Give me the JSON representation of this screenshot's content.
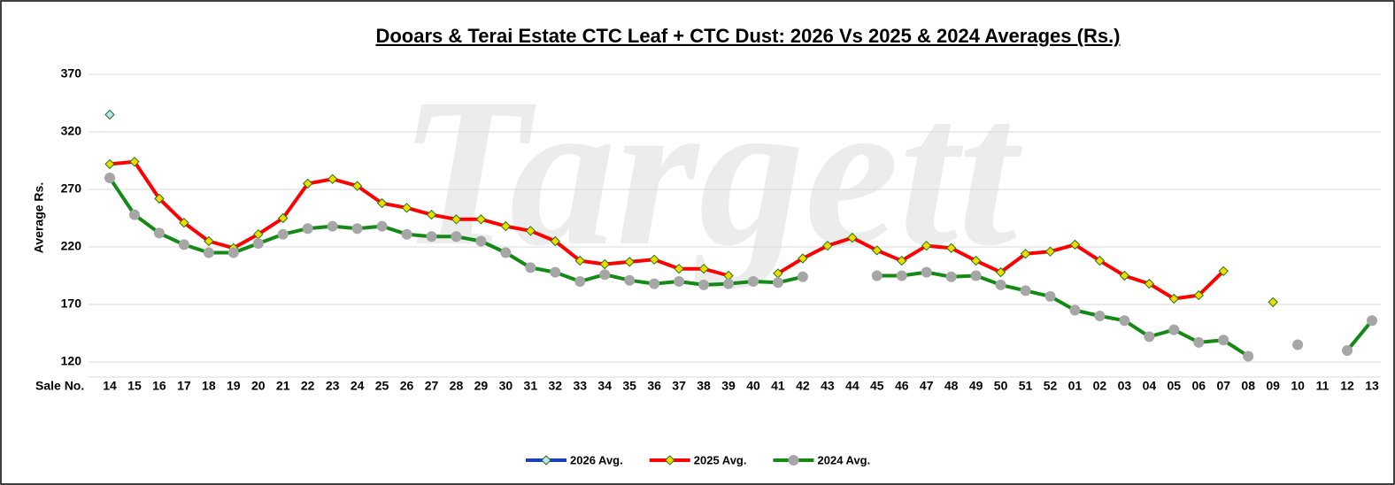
{
  "chart_data": {
    "type": "line",
    "title": "Dooars & Terai Estate CTC Leaf + CTC Dust: 2026 Vs 2025 & 2024 Averages (Rs.)",
    "watermark": "Targett",
    "x_label": "Sale No.",
    "y_label": "Average Rs.",
    "categories": [
      "14",
      "15",
      "16",
      "17",
      "18",
      "19",
      "20",
      "21",
      "22",
      "23",
      "24",
      "25",
      "26",
      "27",
      "28",
      "29",
      "30",
      "31",
      "32",
      "33",
      "34",
      "35",
      "36",
      "37",
      "38",
      "39",
      "40",
      "41",
      "42",
      "43",
      "44",
      "45",
      "46",
      "47",
      "48",
      "49",
      "50",
      "51",
      "52",
      "01",
      "02",
      "03",
      "04",
      "05",
      "06",
      "07",
      "08",
      "09",
      "10",
      "11",
      "12",
      "13"
    ],
    "series": [
      {
        "name": "2026 Avg.",
        "color": "#1f3fbf",
        "marker": "diamond",
        "marker_color": "#bfe3f5",
        "values": [
          335,
          null,
          null,
          null,
          null,
          null,
          null,
          null,
          null,
          null,
          null,
          null,
          null,
          null,
          null,
          null,
          null,
          null,
          null,
          null,
          null,
          null,
          null,
          null,
          null,
          null,
          null,
          null,
          null,
          null,
          null,
          null,
          null,
          null,
          null,
          null,
          null,
          null,
          null,
          null,
          null,
          null,
          null,
          null,
          null,
          null,
          null,
          null,
          null,
          null,
          null,
          null
        ]
      },
      {
        "name": "2025 Avg.",
        "color": "#ff0000",
        "marker": "diamond",
        "marker_color": "#f5d800",
        "values": [
          292,
          294,
          262,
          241,
          225,
          219,
          231,
          245,
          275,
          279,
          273,
          258,
          254,
          248,
          244,
          244,
          238,
          234,
          225,
          208,
          205,
          207,
          209,
          201,
          201,
          195,
          null,
          197,
          210,
          221,
          228,
          217,
          208,
          221,
          219,
          208,
          198,
          214,
          216,
          222,
          208,
          195,
          188,
          175,
          178,
          199,
          null,
          172,
          null,
          null,
          null,
          null
        ]
      },
      {
        "name": "2024 Avg.",
        "color": "#138a13",
        "marker": "circle",
        "marker_color": "#a6a6a6",
        "values": [
          280,
          248,
          232,
          222,
          215,
          215,
          223,
          231,
          236,
          238,
          236,
          238,
          231,
          229,
          229,
          225,
          215,
          202,
          198,
          190,
          196,
          191,
          188,
          190,
          187,
          188,
          190,
          189,
          194,
          null,
          null,
          195,
          195,
          198,
          194,
          195,
          187,
          182,
          177,
          165,
          160,
          156,
          142,
          148,
          137,
          139,
          125,
          null,
          135,
          null,
          130,
          156
        ]
      }
    ],
    "ylim": [
      110,
      370
    ],
    "yticks": [
      120,
      170,
      220,
      270,
      320,
      370
    ],
    "grid": true,
    "legend": "bottom"
  }
}
